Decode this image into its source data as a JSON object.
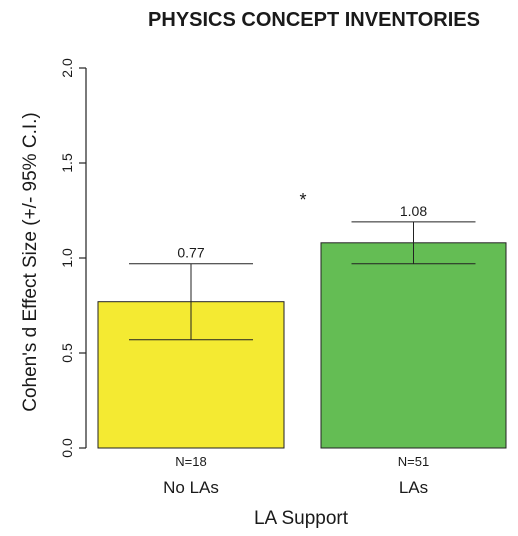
{
  "chart_data": {
    "type": "bar",
    "title": "PHYSICS CONCEPT INVENTORIES",
    "xlabel": "LA Support",
    "ylabel": "Cohen's d Effect Size (+/- 95% C.I.)",
    "ylim": [
      0,
      2.0
    ],
    "yticks": [
      "0.0",
      "0.5",
      "1.0",
      "1.5",
      "2.0"
    ],
    "categories": [
      "No LAs",
      "LAs"
    ],
    "values": [
      0.77,
      1.08
    ],
    "value_labels": [
      "0.77",
      "1.08"
    ],
    "ci_lower": [
      0.57,
      0.97
    ],
    "ci_upper": [
      0.97,
      1.19
    ],
    "n_labels": [
      "N=18",
      "N=51"
    ],
    "colors": [
      "#f4ea32",
      "#64bd54"
    ],
    "significance_marker": "*",
    "grid": false,
    "legend": "none"
  }
}
